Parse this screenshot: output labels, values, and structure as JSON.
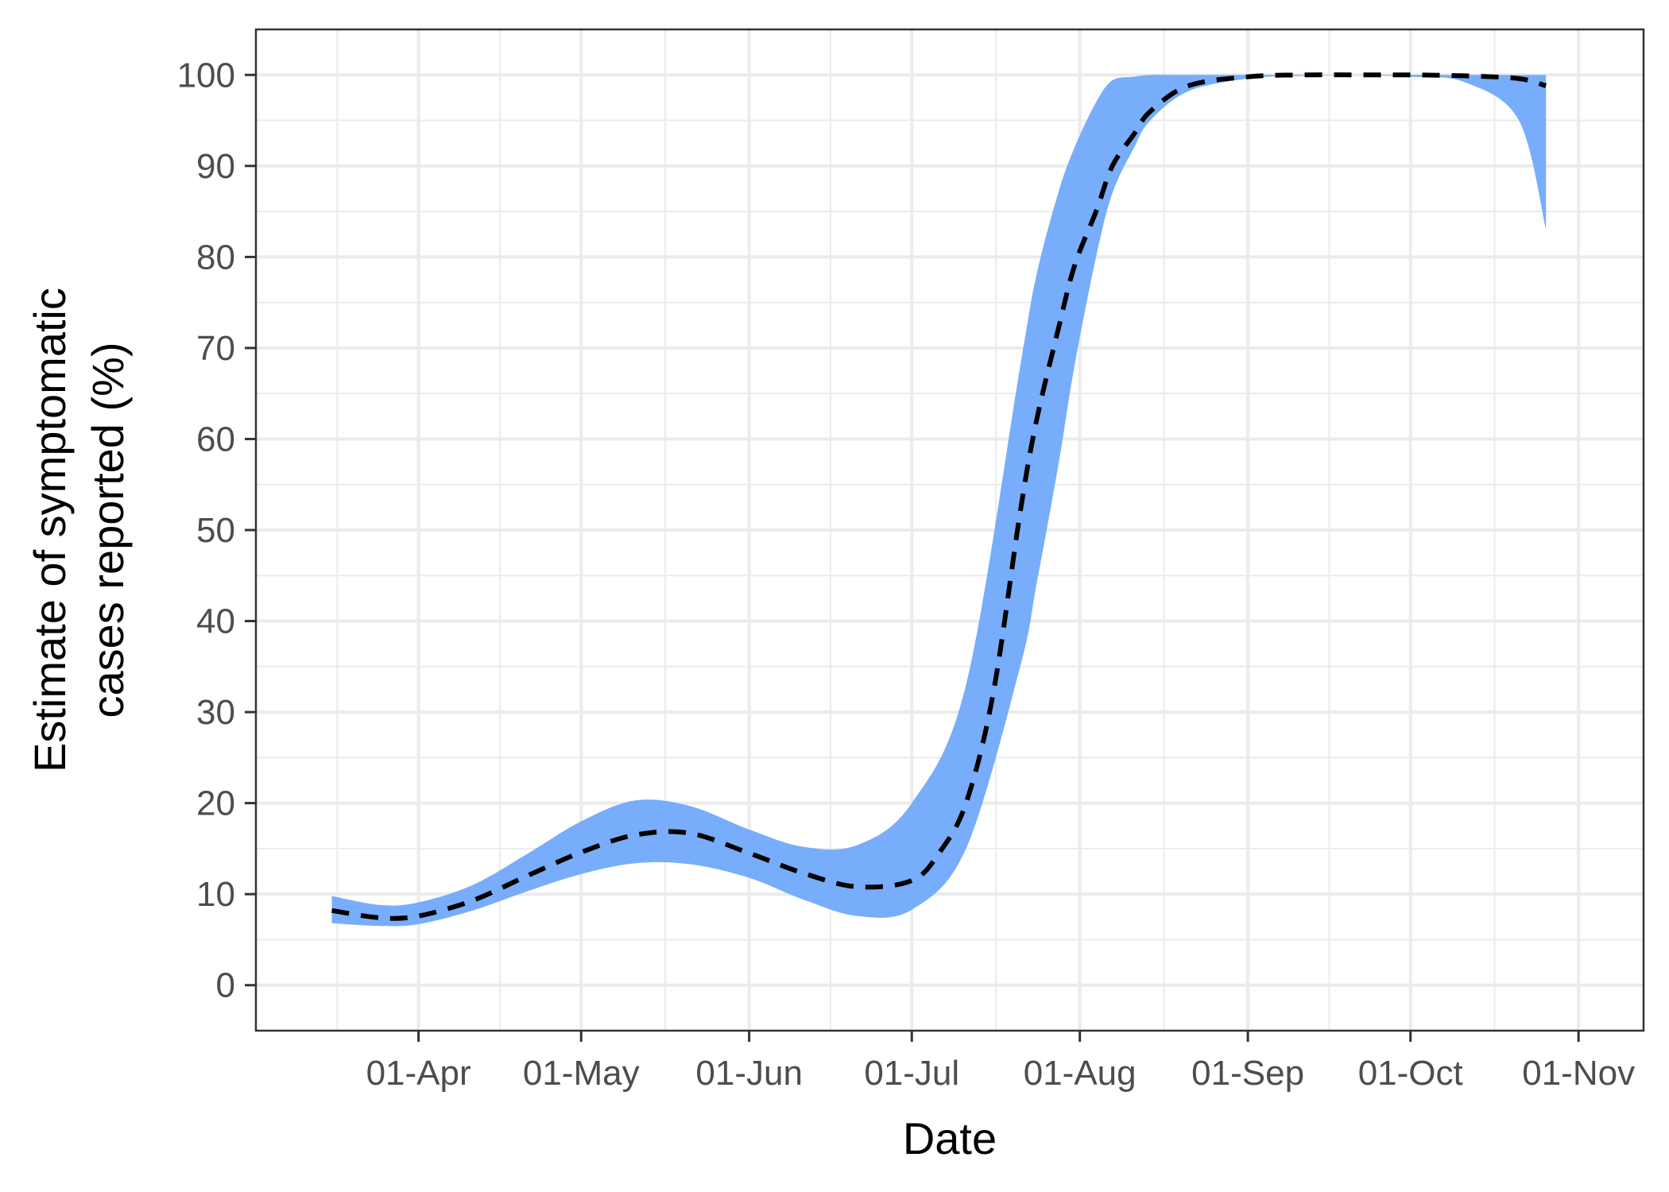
{
  "chart_data": {
    "type": "area",
    "title": "",
    "xlabel": "Date",
    "ylabel_lines": [
      "Estimate of symptomatic",
      "cases reported (%)"
    ],
    "x_axis": {
      "type": "date",
      "range": [
        "2020-03-02",
        "2020-11-13"
      ],
      "tick_dates": [
        "2020-04-01",
        "2020-05-01",
        "2020-06-01",
        "2020-07-01",
        "2020-08-01",
        "2020-09-01",
        "2020-10-01",
        "2020-11-01"
      ],
      "tick_labels": [
        "01-Apr",
        "01-May",
        "01-Jun",
        "01-Jul",
        "01-Aug",
        "01-Sep",
        "01-Oct",
        "01-Nov"
      ]
    },
    "y_axis": {
      "range": [
        -5,
        105
      ],
      "ticks": [
        0,
        10,
        20,
        30,
        40,
        50,
        60,
        70,
        80,
        90,
        100
      ],
      "tick_labels": [
        "0",
        "10",
        "20",
        "30",
        "40",
        "50",
        "60",
        "70",
        "80",
        "90",
        "100"
      ]
    },
    "grid": true,
    "legend": "none",
    "colors": {
      "ribbon": "#77adfb",
      "line": "#000000",
      "grid": "#ebebeb",
      "border": "#333333"
    },
    "series": [
      {
        "kind": "ribbon",
        "x": [
          "2020-03-16",
          "2020-03-25",
          "2020-04-01",
          "2020-04-11",
          "2020-04-21",
          "2020-05-01",
          "2020-05-11",
          "2020-05-21",
          "2020-06-01",
          "2020-06-11",
          "2020-06-21",
          "2020-07-01",
          "2020-07-11",
          "2020-07-21",
          "2020-07-24",
          "2020-07-28",
          "2020-07-31",
          "2020-08-04",
          "2020-08-07",
          "2020-08-11",
          "2020-08-14",
          "2020-08-21",
          "2020-09-01",
          "2020-09-11",
          "2020-09-21",
          "2020-10-01",
          "2020-10-11",
          "2020-10-21",
          "2020-10-26"
        ],
        "lower": [
          6.8,
          6.5,
          6.7,
          8.2,
          10.3,
          12.2,
          13.4,
          13.3,
          11.8,
          9.4,
          7.6,
          8.3,
          15,
          35,
          44,
          57,
          68,
          80,
          87,
          92,
          95,
          98.2,
          99.6,
          99.9,
          100,
          99.8,
          99.2,
          95,
          83
        ],
        "upper": [
          9.8,
          8.8,
          9.1,
          11,
          14.4,
          18,
          20.3,
          19.7,
          17.1,
          15.2,
          15.4,
          20,
          33,
          68,
          78,
          87,
          92,
          97,
          99.4,
          99.8,
          100,
          100,
          100,
          100,
          100,
          100,
          100,
          100,
          100
        ]
      },
      {
        "kind": "line",
        "style": "dashed",
        "x": [
          "2020-03-16",
          "2020-03-25",
          "2020-04-01",
          "2020-04-11",
          "2020-04-21",
          "2020-05-01",
          "2020-05-11",
          "2020-05-21",
          "2020-06-01",
          "2020-06-11",
          "2020-06-21",
          "2020-07-01",
          "2020-07-06",
          "2020-07-11",
          "2020-07-16",
          "2020-07-21",
          "2020-07-24",
          "2020-07-28",
          "2020-07-31",
          "2020-08-04",
          "2020-08-07",
          "2020-08-11",
          "2020-08-14",
          "2020-08-21",
          "2020-09-01",
          "2020-09-11",
          "2020-09-21",
          "2020-10-01",
          "2020-10-11",
          "2020-10-21",
          "2020-10-26"
        ],
        "y": [
          8.2,
          7.4,
          7.6,
          9.3,
          12,
          14.6,
          16.5,
          16.7,
          14.5,
          12.3,
          10.8,
          11.5,
          14.5,
          20,
          32,
          52,
          62,
          72,
          79,
          85,
          90,
          93.5,
          96,
          98.8,
          99.8,
          100,
          100,
          100,
          99.9,
          99.6,
          98.8
        ]
      }
    ]
  }
}
